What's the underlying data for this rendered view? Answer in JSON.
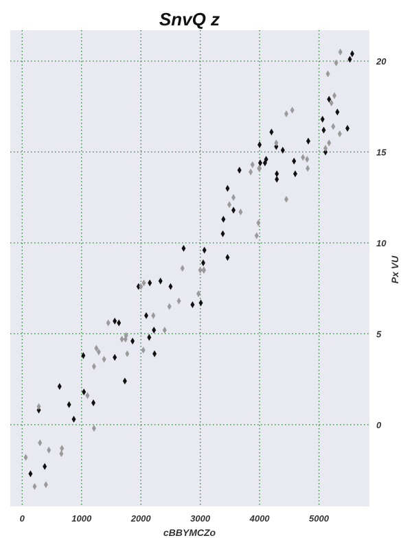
{
  "chart_data": {
    "type": "scatter",
    "title": "SnvQ z",
    "xlabel": "cBBYMCZo",
    "ylabel": "Px VU",
    "xlim": [
      -200,
      5850
    ],
    "ylim": [
      -4.5,
      21.7
    ],
    "xticks": [
      0,
      1000,
      2000,
      3000,
      4000,
      5000
    ],
    "yticks": [
      0,
      5,
      10,
      15,
      20
    ],
    "grid": true,
    "y_axis_side": "right",
    "colors": {
      "background": "#e9e9f1",
      "grid": "#2e8b3a",
      "series_dark": "#111111",
      "series_light": "#9a9a9a"
    },
    "series": [
      {
        "marker": "thin_diamond",
        "color": "#111111",
        "points": [
          [
            140,
            -2.7
          ],
          [
            280,
            0.8
          ],
          [
            380,
            -2.3
          ],
          [
            630,
            2.1
          ],
          [
            790,
            1.1
          ],
          [
            870,
            0.3
          ],
          [
            1030,
            3.8
          ],
          [
            1040,
            1.8
          ],
          [
            1200,
            1.2
          ],
          [
            1560,
            3.7
          ],
          [
            1560,
            5.7
          ],
          [
            1630,
            5.6
          ],
          [
            1730,
            2.4
          ],
          [
            1860,
            4.6
          ],
          [
            1960,
            7.6
          ],
          [
            2090,
            6.0
          ],
          [
            2140,
            4.8
          ],
          [
            2150,
            7.8
          ],
          [
            2220,
            5.2
          ],
          [
            2230,
            3.9
          ],
          [
            2330,
            7.9
          ],
          [
            2500,
            7.6
          ],
          [
            2720,
            9.7
          ],
          [
            2870,
            6.6
          ],
          [
            3010,
            6.7
          ],
          [
            3050,
            8.9
          ],
          [
            3070,
            9.6
          ],
          [
            3060,
            8.5
          ],
          [
            3390,
            11.3
          ],
          [
            3380,
            10.5
          ],
          [
            3460,
            13.0
          ],
          [
            3460,
            9.2
          ],
          [
            3560,
            11.8
          ],
          [
            3660,
            14.0
          ],
          [
            4000,
            15.4
          ],
          [
            4010,
            14.4
          ],
          [
            4090,
            14.4
          ],
          [
            4110,
            14.6
          ],
          [
            4200,
            16.1
          ],
          [
            4280,
            15.3
          ],
          [
            4290,
            13.8
          ],
          [
            4290,
            13.5
          ],
          [
            4390,
            15.1
          ],
          [
            4580,
            14.5
          ],
          [
            4600,
            13.8
          ],
          [
            4820,
            15.6
          ],
          [
            5060,
            16.8
          ],
          [
            5080,
            16.2
          ],
          [
            5110,
            15.0
          ],
          [
            5170,
            17.9
          ],
          [
            5310,
            17.2
          ],
          [
            5480,
            16.3
          ],
          [
            5520,
            20.1
          ],
          [
            5560,
            20.4
          ]
        ]
      },
      {
        "marker": "thin_diamond",
        "color": "#9a9a9a",
        "points": [
          [
            60,
            -1.8
          ],
          [
            210,
            -3.4
          ],
          [
            280,
            1.0
          ],
          [
            300,
            -1.0
          ],
          [
            400,
            -3.3
          ],
          [
            450,
            -1.4
          ],
          [
            660,
            -1.6
          ],
          [
            670,
            -1.3
          ],
          [
            1100,
            1.6
          ],
          [
            1210,
            -0.2
          ],
          [
            1210,
            3.2
          ],
          [
            1250,
            4.2
          ],
          [
            1290,
            4.0
          ],
          [
            1380,
            3.6
          ],
          [
            1450,
            5.6
          ],
          [
            1680,
            4.7
          ],
          [
            1740,
            4.7
          ],
          [
            1750,
            4.9
          ],
          [
            1770,
            3.9
          ],
          [
            2000,
            7.6
          ],
          [
            2040,
            4.1
          ],
          [
            2050,
            7.8
          ],
          [
            2210,
            6.0
          ],
          [
            2400,
            5.2
          ],
          [
            2480,
            6.5
          ],
          [
            2640,
            6.8
          ],
          [
            2700,
            8.6
          ],
          [
            2970,
            7.2
          ],
          [
            3000,
            8.5
          ],
          [
            3060,
            8.5
          ],
          [
            3490,
            12.1
          ],
          [
            3560,
            12.5
          ],
          [
            3680,
            11.7
          ],
          [
            3850,
            13.9
          ],
          [
            3880,
            14.3
          ],
          [
            3950,
            10.4
          ],
          [
            3980,
            11.1
          ],
          [
            3990,
            14.1
          ],
          [
            4000,
            14.1
          ],
          [
            4280,
            15.5
          ],
          [
            4450,
            17.1
          ],
          [
            4450,
            12.4
          ],
          [
            4550,
            17.3
          ],
          [
            4730,
            14.7
          ],
          [
            4800,
            14.6
          ],
          [
            4810,
            14.1
          ],
          [
            5110,
            15.2
          ],
          [
            5150,
            19.3
          ],
          [
            5170,
            15.5
          ],
          [
            5210,
            17.7
          ],
          [
            5240,
            16.4
          ],
          [
            5260,
            18.1
          ],
          [
            5290,
            19.9
          ],
          [
            5350,
            16.0
          ],
          [
            5360,
            20.5
          ]
        ]
      }
    ]
  }
}
